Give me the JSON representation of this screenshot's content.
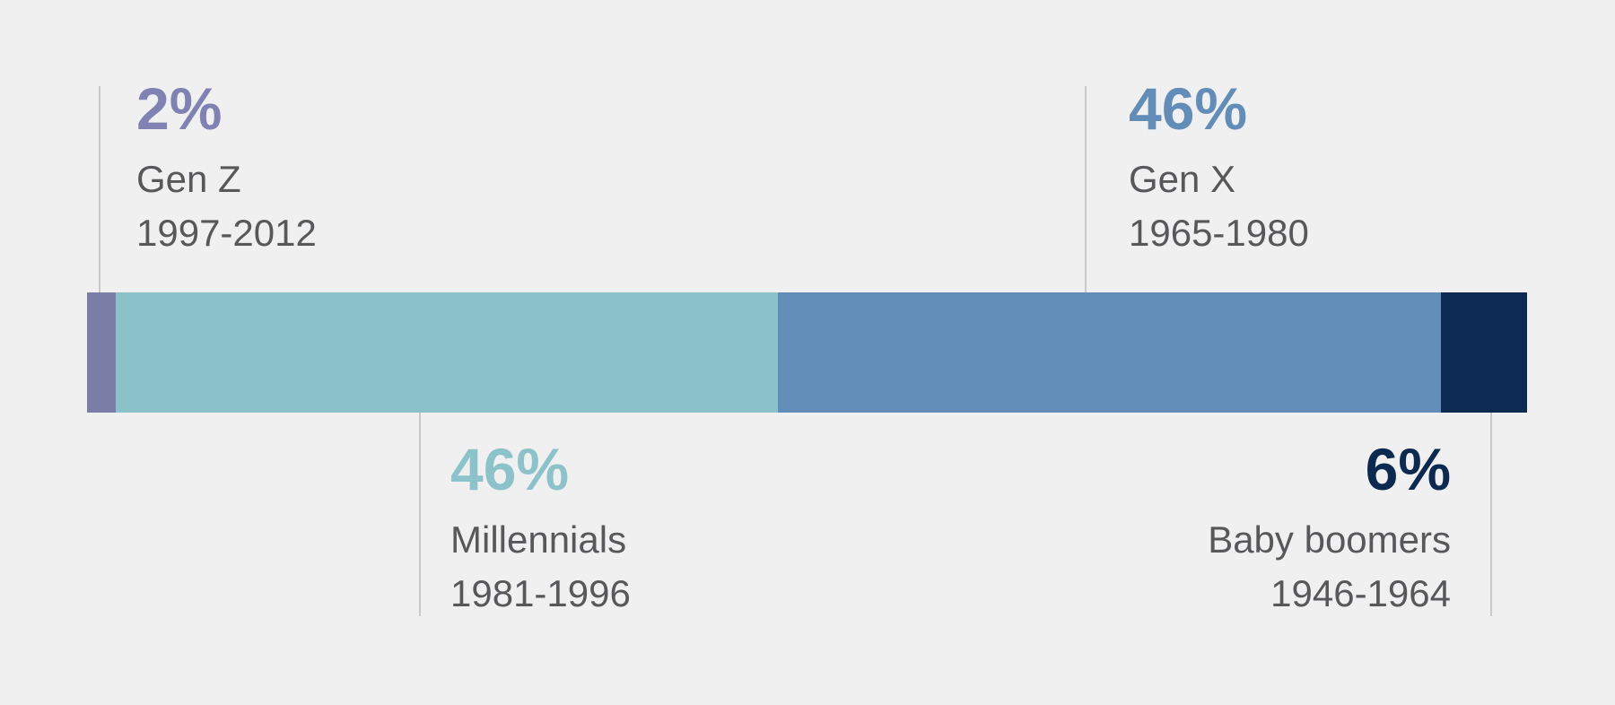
{
  "chart_data": {
    "type": "bar",
    "orientation": "horizontal",
    "stacked": true,
    "total": 100,
    "background_color": "#f0f0f1",
    "connector_line_color": "#c9c9c9",
    "label_text_color": "#58585a",
    "legend_position": "callouts",
    "grid": false,
    "categories": [
      "Gen Z",
      "Millennials",
      "Gen X",
      "Baby boomers"
    ],
    "values": [
      2,
      46,
      46,
      6
    ],
    "segments": [
      {
        "name": "Gen Z",
        "years": "1997-2012",
        "value": 2,
        "value_label": "2%",
        "bar_color": "#7b7ea7",
        "label_color": "#8082b4",
        "callout": "top-left"
      },
      {
        "name": "Millennials",
        "years": "1981-1996",
        "value": 46,
        "value_label": "46%",
        "bar_color": "#8bc1c9",
        "label_color": "#8cc3ca",
        "callout": "bottom-left"
      },
      {
        "name": "Gen X",
        "years": "1965-1980",
        "value": 46,
        "value_label": "46%",
        "bar_color": "#628db8",
        "label_color": "#628db8",
        "callout": "top-right"
      },
      {
        "name": "Baby boomers",
        "years": "1946-1964",
        "value": 6,
        "value_label": "6%",
        "bar_color": "#0d2a52",
        "label_color": "#0c2a50",
        "callout": "bottom-right"
      }
    ]
  }
}
